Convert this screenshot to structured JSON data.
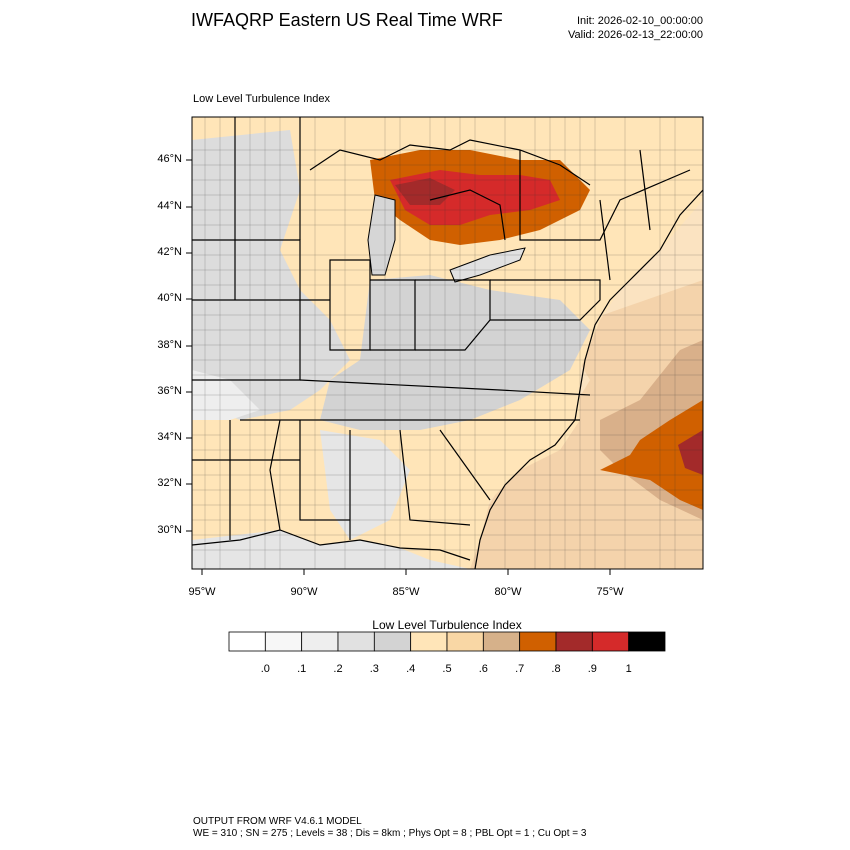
{
  "title": "IWFAQRP Eastern US Real Time WRF",
  "init_time": "Init: 2026-02-10_00:00:00",
  "valid_time": "Valid: 2026-02-13_22:00:00",
  "map_title": "Low Level Turbulence Index",
  "lat_labels": [
    "46°N",
    "44°N",
    "42°N",
    "40°N",
    "38°N",
    "36°N",
    "34°N",
    "32°N",
    "30°N"
  ],
  "lon_labels": [
    "95°W",
    "90°W",
    "85°W",
    "80°W",
    "75°W"
  ],
  "colorbar": {
    "title": "Low Level Turbulence Index",
    "labels": [
      ".0",
      ".1",
      ".2",
      ".3",
      ".4",
      ".5",
      ".6",
      ".7",
      ".8",
      ".9",
      "1"
    ],
    "colors": [
      "#ffffff",
      "#f7f7f7",
      "#eeeeee",
      "#e1e1e1",
      "#d3d3d3",
      "#ffe5b8",
      "#f9d7a5",
      "#d6b18a",
      "#d06000",
      "#a32a2a",
      "#d52a2a",
      "#000000"
    ]
  },
  "footer": {
    "line1": "OUTPUT FROM WRF V4.6.1 MODEL",
    "line2": "WE = 310 ; SN = 275 ; Levels = 38 ; Dis = 8km ; Phys Opt = 8 ; PBL Opt = 1 ; Cu Opt = 3"
  }
}
